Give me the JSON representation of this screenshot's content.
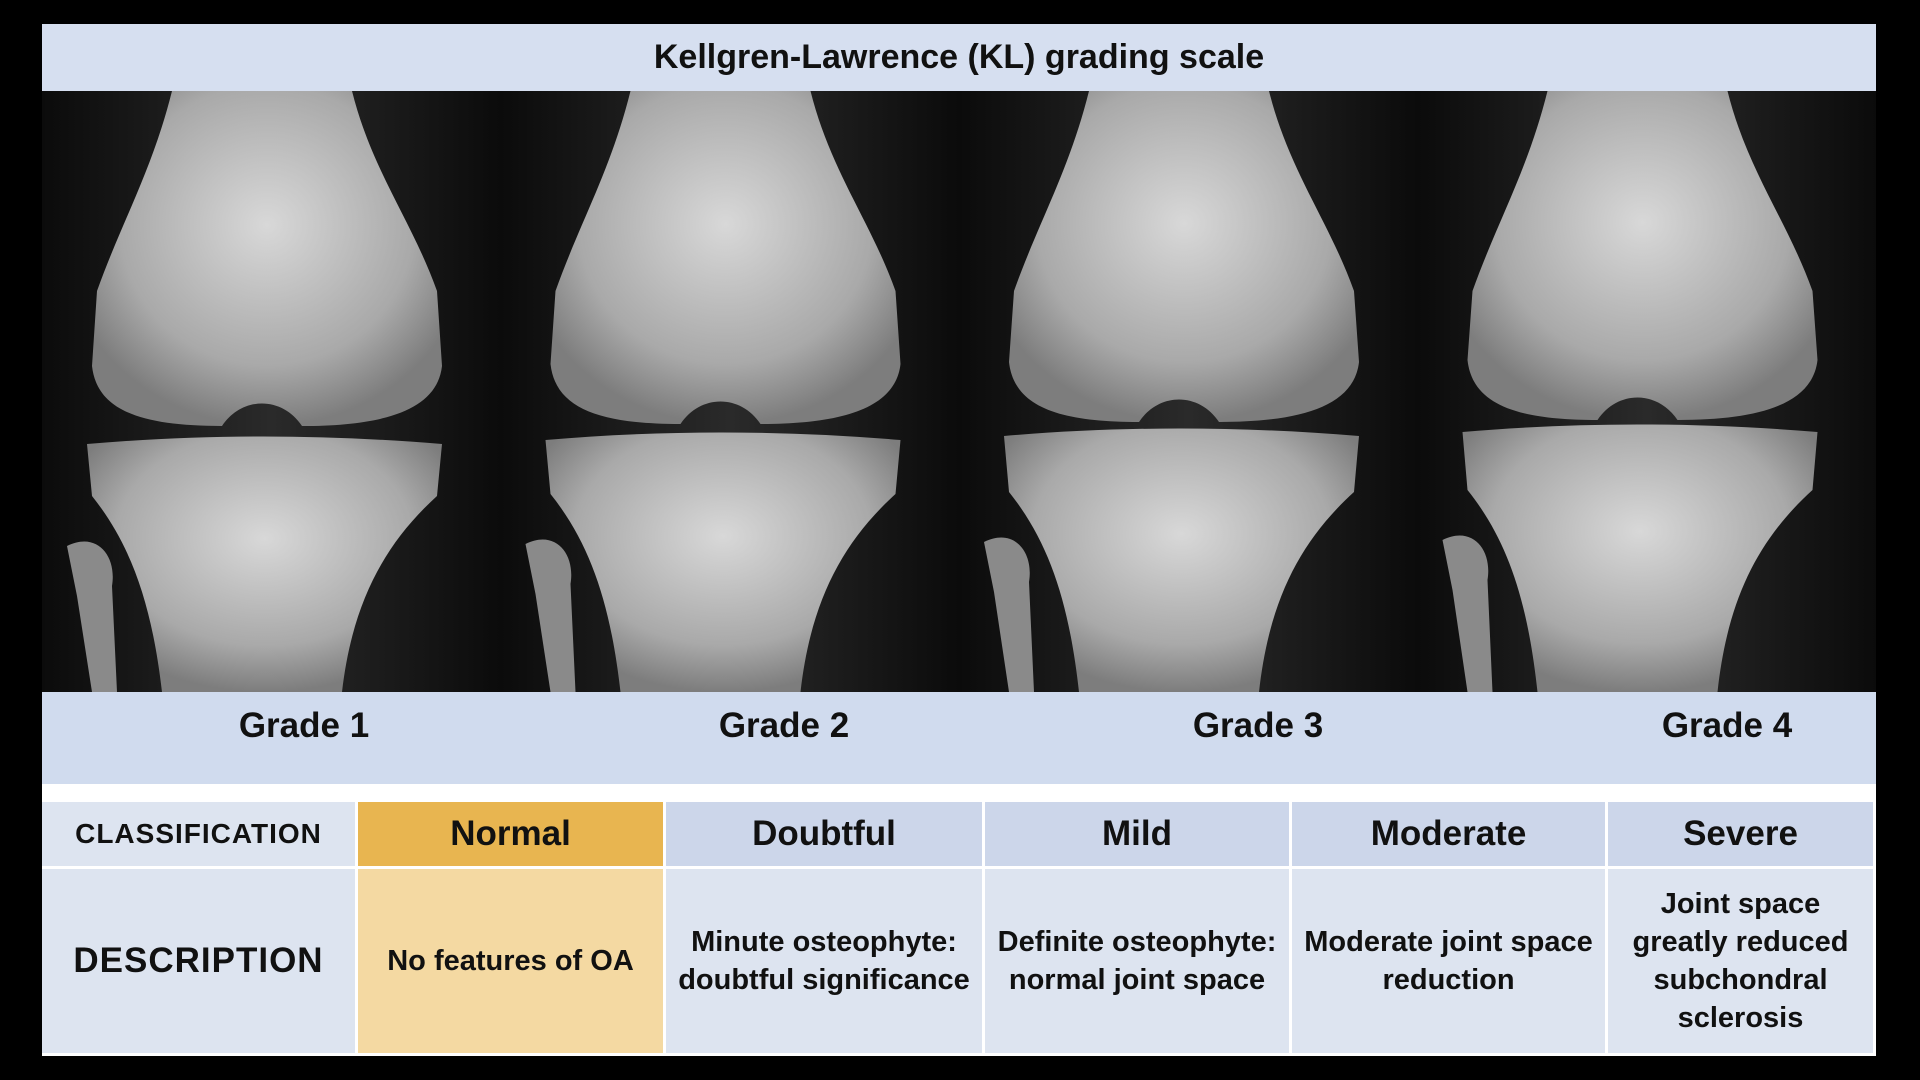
{
  "title": "Kellgren-Lawrence (KL) grading scale",
  "grades": [
    "Grade 1",
    "Grade 2",
    "Grade 3",
    "Grade 4"
  ],
  "table": {
    "rows": [
      [
        "CLASSIFICATION",
        "Normal",
        "Doubtful",
        "Mild",
        "Moderate",
        "Severe"
      ],
      [
        "DESCRIPTION",
        "No features of OA",
        "Minute osteophyte: doubtful significance",
        "Definite osteophyte: normal joint space",
        "Moderate joint space reduction",
        "Joint space greatly reduced subchondral sclerosis"
      ]
    ]
  }
}
